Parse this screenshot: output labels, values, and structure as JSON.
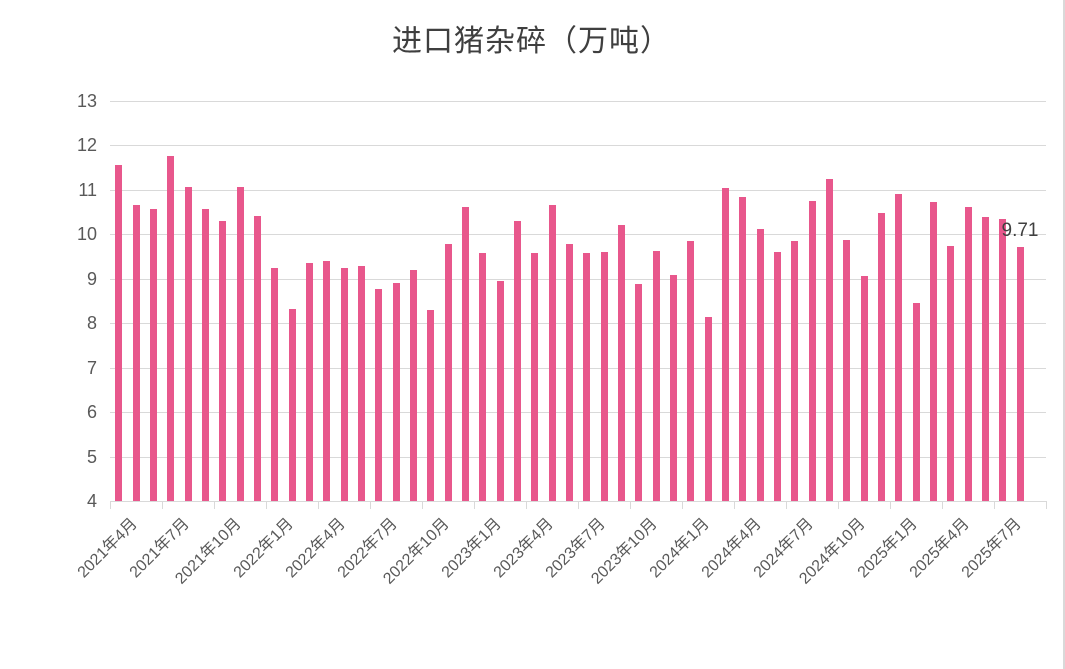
{
  "chart_data": {
    "type": "bar",
    "title": "进口猪杂碎（万吨）",
    "xlabel": "",
    "ylabel": "",
    "ylim": [
      4,
      13
    ],
    "yticks": [
      4,
      5,
      6,
      7,
      8,
      9,
      10,
      11,
      12,
      13
    ],
    "grid": "horizontal",
    "legend_position": "none",
    "x_tick_label_interval": 3,
    "bar_color": "#e8578c",
    "grid_color": "#d9d9d9",
    "axis_text_color": "#595959",
    "title_color": "#3f3f3f",
    "data_label_color": "#404040",
    "categories": [
      "2021年4月",
      "2021年5月",
      "2021年6月",
      "2021年7月",
      "2021年8月",
      "2021年9月",
      "2021年10月",
      "2021年11月",
      "2021年12月",
      "2022年1月",
      "2022年2月",
      "2022年3月",
      "2022年4月",
      "2022年5月",
      "2022年6月",
      "2022年7月",
      "2022年8月",
      "2022年9月",
      "2022年10月",
      "2022年11月",
      "2022年12月",
      "2023年1月",
      "2023年2月",
      "2023年3月",
      "2023年4月",
      "2023年5月",
      "2023年6月",
      "2023年7月",
      "2023年8月",
      "2023年9月",
      "2023年10月",
      "2023年11月",
      "2023年12月",
      "2024年1月",
      "2024年2月",
      "2024年3月",
      "2024年4月",
      "2024年5月",
      "2024年6月",
      "2024年7月",
      "2024年8月",
      "2024年9月",
      "2024年10月",
      "2024年11月",
      "2024年12月",
      "2025年1月",
      "2025年2月",
      "2025年3月",
      "2025年4月",
      "2025年5月",
      "2025年6月",
      "2025年7月",
      "2025年8月"
    ],
    "values": [
      11.55,
      10.65,
      10.57,
      11.76,
      11.07,
      10.56,
      10.31,
      11.06,
      10.42,
      9.25,
      8.33,
      9.35,
      9.4,
      9.24,
      9.29,
      8.78,
      8.9,
      9.2,
      8.3,
      9.79,
      10.61,
      9.59,
      8.94,
      10.31,
      9.57,
      10.65,
      9.79,
      9.57,
      9.6,
      10.22,
      8.89,
      9.62,
      9.08,
      9.85,
      8.14,
      11.05,
      10.84,
      10.12,
      9.6,
      9.85,
      10.74,
      11.25,
      9.87,
      9.06,
      10.48,
      10.9,
      8.45,
      10.73,
      9.74,
      10.61,
      10.4,
      10.35,
      9.71
    ],
    "x_tick_labels": [
      "2021年4月",
      "2021年7月",
      "2021年10月",
      "2022年1月",
      "2022年4月",
      "2022年7月",
      "2022年10月",
      "2023年1月",
      "2023年4月",
      "2023年7月",
      "2023年10月",
      "2024年1月",
      "2024年4月",
      "2024年7月",
      "2024年10月",
      "2025年1月",
      "2025年4月",
      "2025年7月"
    ],
    "last_point_label": "9.71"
  }
}
